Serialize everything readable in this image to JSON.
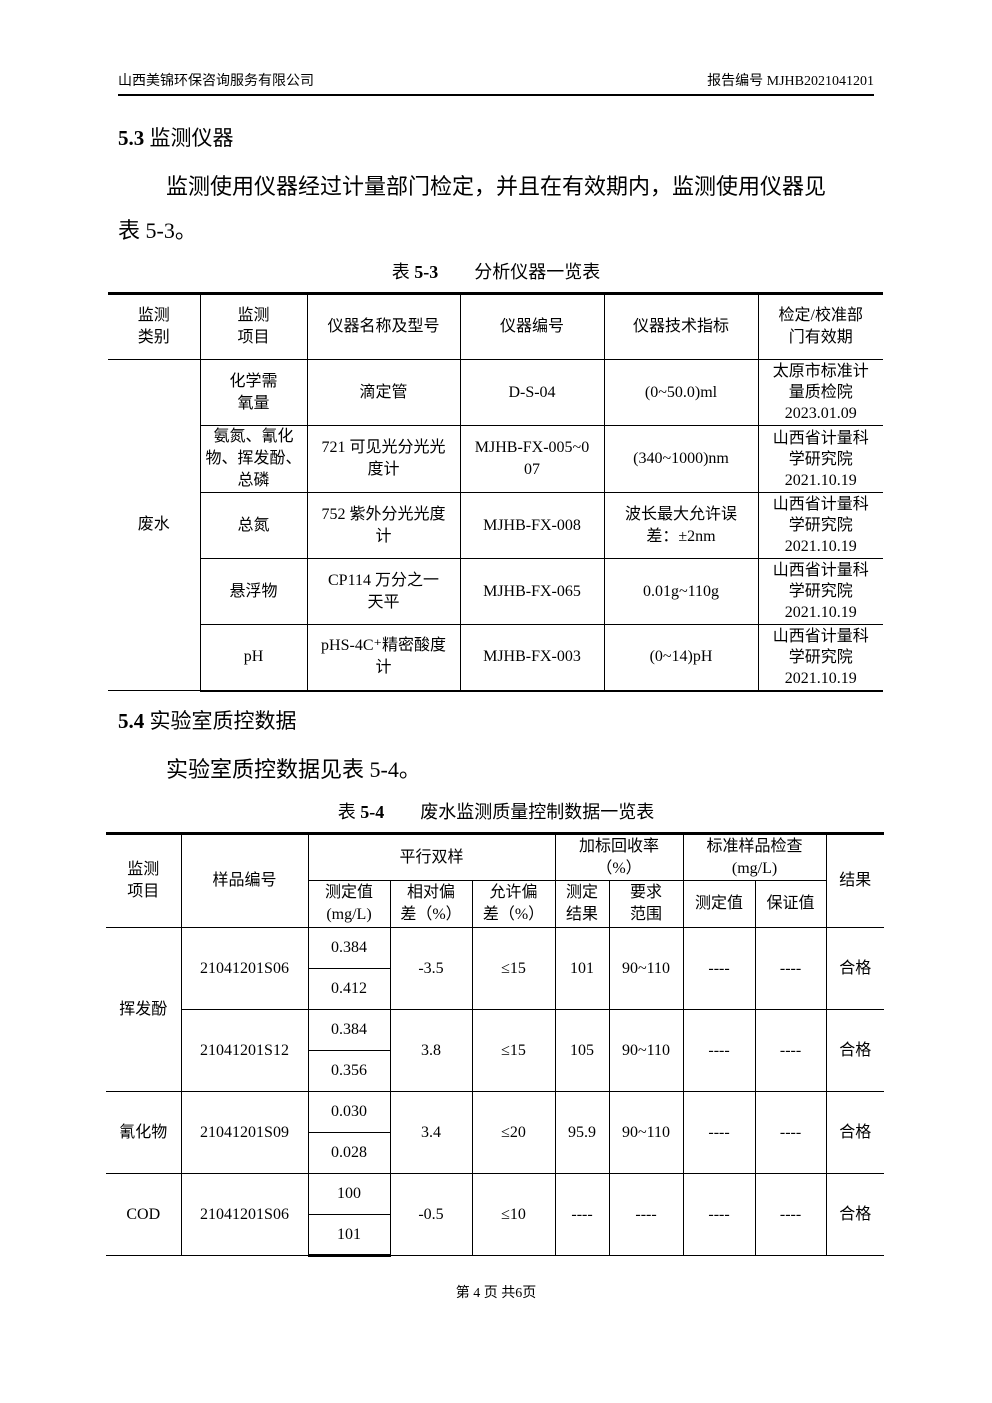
{
  "header": {
    "company": "山西美锦环保咨询服务有限公司",
    "report_no": "报告编号 MJHB2021041201"
  },
  "sec53": {
    "num": "5.3",
    "title": "监测仪器",
    "para1": "监测使用仪器经过计量部门检定，并且在有效期内，监测使用仪器见",
    "para2": "表 5-3。"
  },
  "table53": {
    "caption_prefix": "表 ",
    "caption_num": "5-3",
    "caption_title": "分析仪器一览表",
    "headers": [
      "监测\n类别",
      "监测\n项目",
      "仪器名称及型号",
      "仪器编号",
      "仪器技术指标",
      "检定/校准部\n门有效期"
    ],
    "category": "废水",
    "rows": [
      {
        "item": "化学需\n氧量",
        "name": "滴定管",
        "id": "D-S-04",
        "spec": "(0~50.0)ml",
        "cal": "太原市标准计\n量质检院\n2023.01.09"
      },
      {
        "item": "氨氮、氰化\n物、挥发酚、\n总磷",
        "name": "721 可见光分光光\n度计",
        "id": "MJHB-FX-005~0\n07",
        "spec": "(340~1000)nm",
        "cal": "山西省计量科\n学研究院\n2021.10.19"
      },
      {
        "item": "总氮",
        "name": "752 紫外分光光度\n计",
        "id": "MJHB-FX-008",
        "spec": "波长最大允许误\n差：±2nm",
        "cal": "山西省计量科\n学研究院\n2021.10.19"
      },
      {
        "item": "悬浮物",
        "name": "CP114 万分之一\n天平",
        "id": "MJHB-FX-065",
        "spec": "0.01g~110g",
        "cal": "山西省计量科\n学研究院\n2021.10.19"
      },
      {
        "item": "pH",
        "name": "pHS-4C⁺精密酸度\n计",
        "id": "MJHB-FX-003",
        "spec": "(0~14)pH",
        "cal": "山西省计量科\n学研究院\n2021.10.19"
      }
    ]
  },
  "sec54": {
    "num": "5.4",
    "title": "实验室质控数据",
    "para": "实验室质控数据见表 5-4。"
  },
  "table54": {
    "caption_prefix": "表 ",
    "caption_num": "5-4",
    "caption_title": "废水监测质量控制数据一览表",
    "h_item": "监测\n项目",
    "h_sample": "样品编号",
    "h_parallel": "平行双样",
    "h_spike": "加标回收率\n（%）",
    "h_std": "标准样品检查\n(mg/L)",
    "h_result": "结果",
    "h_measured": "测定值\n(mg/L)",
    "h_rel": "相对偏\n差（%）",
    "h_allow": "允许偏\n差（%）",
    "h_spike_res": "测定\n结果",
    "h_spike_req": "要求\n范围",
    "h_std_meas": "测定值",
    "h_std_guar": "保证值",
    "groups": [
      {
        "item": "挥发酚",
        "samples": [
          {
            "id": "21041201S06",
            "v1": "0.384",
            "v2": "0.412",
            "rel": "-3.5",
            "allow": "≤15",
            "spike": "101",
            "range": "90~110",
            "std_m": "----",
            "std_g": "----",
            "result": "合格"
          },
          {
            "id": "21041201S12",
            "v1": "0.384",
            "v2": "0.356",
            "rel": "3.8",
            "allow": "≤15",
            "spike": "105",
            "range": "90~110",
            "std_m": "----",
            "std_g": "----",
            "result": "合格"
          }
        ]
      },
      {
        "item": "氰化物",
        "samples": [
          {
            "id": "21041201S09",
            "v1": "0.030",
            "v2": "0.028",
            "rel": "3.4",
            "allow": "≤20",
            "spike": "95.9",
            "range": "90~110",
            "std_m": "----",
            "std_g": "----",
            "result": "合格"
          }
        ]
      },
      {
        "item": "COD",
        "samples": [
          {
            "id": "21041201S06",
            "v1": "100",
            "v2": "101",
            "rel": "-0.5",
            "allow": "≤10",
            "spike": "----",
            "range": "----",
            "std_m": "----",
            "std_g": "----",
            "result": "合格"
          }
        ]
      }
    ]
  },
  "footer": {
    "text": "第 4 页 共6页"
  }
}
